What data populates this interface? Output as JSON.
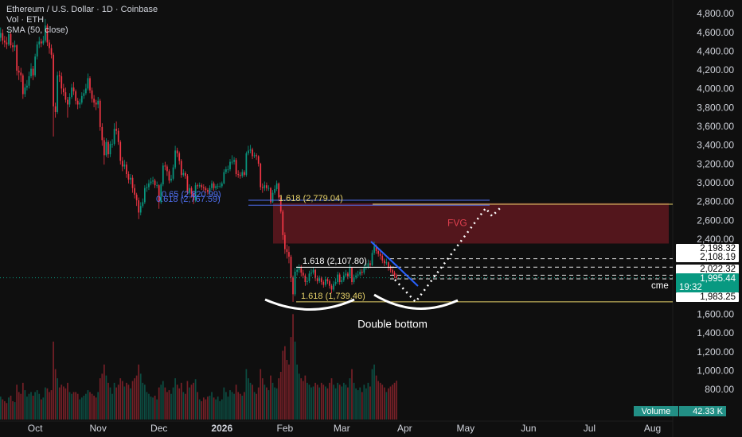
{
  "chart_data": {
    "type": "candlestick",
    "title": "Ethereum / U.S. Dollar · 1D · Coinbase",
    "indicators": [
      "Vol · ETH",
      "SMA (50, close)"
    ],
    "up_color": "#089981",
    "down_color": "#f23645",
    "grid": false,
    "xlim": [
      -0.3,
      331
    ],
    "xticks": [
      {
        "value": 17,
        "label": "Oct"
      },
      {
        "value": 48,
        "label": "Nov"
      },
      {
        "value": 78,
        "label": "Dec"
      },
      {
        "value": 109,
        "label": "2026"
      },
      {
        "value": 140,
        "label": "Feb"
      },
      {
        "value": 168,
        "label": "Mar"
      },
      {
        "value": 199,
        "label": "Apr"
      },
      {
        "value": 229,
        "label": "May"
      },
      {
        "value": 260,
        "label": "Jun"
      },
      {
        "value": 290,
        "label": "Jul"
      },
      {
        "value": 321,
        "label": "Aug"
      }
    ],
    "ylim": [
      470,
      4952
    ],
    "yticks": [
      {
        "value": 800,
        "label": "800.00"
      },
      {
        "value": 1000,
        "label": "1,000.00"
      },
      {
        "value": 1200,
        "label": "1,200.00"
      },
      {
        "value": 1400,
        "label": "1,400.00"
      },
      {
        "value": 1600,
        "label": "1,600.00"
      },
      {
        "value": 1800,
        "label": "1,800.00"
      },
      {
        "value": 2000,
        "label": "2,000.00"
      },
      {
        "value": 2200,
        "label": "2,200.00"
      },
      {
        "value": 2400,
        "label": "2,400.00"
      },
      {
        "value": 2600,
        "label": "2,600.00"
      },
      {
        "value": 2800,
        "label": "2,800.00"
      },
      {
        "value": 3000,
        "label": "3,000.00"
      },
      {
        "value": 3200,
        "label": "3,200.00"
      },
      {
        "value": 3400,
        "label": "3,400.00"
      },
      {
        "value": 3600,
        "label": "3,600.00"
      },
      {
        "value": 3800,
        "label": "3,800.00"
      },
      {
        "value": 4000,
        "label": "4,000.00"
      },
      {
        "value": 4200,
        "label": "4,200.00"
      },
      {
        "value": 4400,
        "label": "4,400.00"
      },
      {
        "value": 4600,
        "label": "4,600.00"
      },
      {
        "value": 4800,
        "label": "4,800.00"
      }
    ],
    "candles": [
      [
        4550,
        4660,
        4510,
        4600
      ],
      [
        4600,
        4640,
        4480,
        4520
      ],
      [
        4520,
        4570,
        4450,
        4500
      ],
      [
        4500,
        4560,
        4430,
        4480
      ],
      [
        4480,
        4640,
        4460,
        4590
      ],
      [
        4590,
        4610,
        4440,
        4470
      ],
      [
        4470,
        4500,
        4400,
        4450
      ],
      [
        4450,
        4520,
        4410,
        4470
      ],
      [
        4470,
        4480,
        4150,
        4200
      ],
      [
        4200,
        4250,
        4100,
        4180
      ],
      [
        4180,
        4230,
        4080,
        4150
      ],
      [
        4150,
        4170,
        3900,
        3950
      ],
      [
        3950,
        4060,
        3920,
        4020
      ],
      [
        4020,
        4100,
        3990,
        4040
      ],
      [
        4040,
        4190,
        4010,
        4140
      ],
      [
        4140,
        4280,
        4120,
        4220
      ],
      [
        4220,
        4250,
        4100,
        4150
      ],
      [
        4150,
        4380,
        4130,
        4350
      ],
      [
        4350,
        4510,
        4320,
        4480
      ],
      [
        4480,
        4560,
        4440,
        4510
      ],
      [
        4510,
        4540,
        4450,
        4490
      ],
      [
        4490,
        4570,
        4470,
        4520
      ],
      [
        4520,
        4750,
        4500,
        4680
      ],
      [
        4680,
        4700,
        4460,
        4500
      ],
      [
        4500,
        4530,
        4380,
        4440
      ],
      [
        4440,
        4480,
        4330,
        4370
      ],
      [
        4370,
        4390,
        3500,
        3820
      ],
      [
        3820,
        3860,
        3700,
        3760
      ],
      [
        3760,
        4190,
        3740,
        4150
      ],
      [
        4150,
        4200,
        4080,
        4140
      ],
      [
        4140,
        4180,
        3950,
        4010
      ],
      [
        4010,
        4060,
        3930,
        3970
      ],
      [
        3970,
        4020,
        3860,
        3890
      ],
      [
        3890,
        3920,
        3700,
        3840
      ],
      [
        3840,
        3960,
        3810,
        3920
      ],
      [
        3920,
        4060,
        3900,
        4020
      ],
      [
        4020,
        4080,
        3940,
        3980
      ],
      [
        3980,
        4000,
        3840,
        3880
      ],
      [
        3880,
        3910,
        3790,
        3840
      ],
      [
        3840,
        3900,
        3800,
        3860
      ],
      [
        3860,
        3970,
        3840,
        3930
      ],
      [
        3930,
        4000,
        3900,
        3960
      ],
      [
        3960,
        4060,
        3940,
        4010
      ],
      [
        4010,
        4170,
        3990,
        4120
      ],
      [
        4120,
        4140,
        3960,
        3990
      ],
      [
        3990,
        4020,
        3860,
        3900
      ],
      [
        3900,
        3940,
        3810,
        3860
      ],
      [
        3860,
        3890,
        3780,
        3840
      ],
      [
        3840,
        3920,
        3800,
        3880
      ],
      [
        3880,
        3900,
        3560,
        3600
      ],
      [
        3600,
        3640,
        3400,
        3460
      ],
      [
        3460,
        3490,
        3200,
        3300
      ],
      [
        3300,
        3480,
        3280,
        3440
      ],
      [
        3440,
        3460,
        3270,
        3310
      ],
      [
        3310,
        3450,
        3280,
        3420
      ],
      [
        3420,
        3470,
        3380,
        3420
      ],
      [
        3420,
        3640,
        3400,
        3580
      ],
      [
        3580,
        3660,
        3520,
        3560
      ],
      [
        3560,
        3590,
        3410,
        3440
      ],
      [
        3440,
        3460,
        3200,
        3240
      ],
      [
        3240,
        3280,
        3130,
        3180
      ],
      [
        3180,
        3250,
        3150,
        3200
      ],
      [
        3200,
        3230,
        3060,
        3100
      ],
      [
        3100,
        3130,
        3000,
        3040
      ],
      [
        3040,
        3100,
        2990,
        3060
      ],
      [
        3060,
        3090,
        2900,
        2950
      ],
      [
        2950,
        2990,
        2840,
        2880
      ],
      [
        2880,
        2900,
        2760,
        2820
      ],
      [
        2820,
        2850,
        2620,
        2690
      ],
      [
        2690,
        2800,
        2660,
        2760
      ],
      [
        2760,
        2840,
        2740,
        2800
      ],
      [
        2800,
        2980,
        2780,
        2950
      ],
      [
        2950,
        3000,
        2910,
        2960
      ],
      [
        2960,
        3040,
        2930,
        3000
      ],
      [
        3000,
        3060,
        2980,
        3020
      ],
      [
        3020,
        3070,
        2990,
        3030
      ],
      [
        3030,
        3050,
        2950,
        2980
      ],
      [
        2980,
        3020,
        2950,
        2980
      ],
      [
        2980,
        2990,
        2730,
        2800
      ],
      [
        2800,
        3010,
        2780,
        2990
      ],
      [
        2990,
        3220,
        2970,
        3190
      ],
      [
        3190,
        3230,
        3140,
        3180
      ],
      [
        3180,
        3200,
        3080,
        3130
      ],
      [
        3130,
        3150,
        3000,
        3030
      ],
      [
        3030,
        3090,
        3010,
        3050
      ],
      [
        3050,
        3200,
        3030,
        3170
      ],
      [
        3170,
        3400,
        3150,
        3350
      ],
      [
        3350,
        3380,
        3280,
        3320
      ],
      [
        3320,
        3340,
        3200,
        3240
      ],
      [
        3240,
        3260,
        3060,
        3090
      ],
      [
        3090,
        3150,
        3070,
        3110
      ],
      [
        3110,
        3130,
        3050,
        3080
      ],
      [
        3080,
        3100,
        2880,
        2900
      ],
      [
        2900,
        2990,
        2880,
        2950
      ],
      [
        2950,
        2970,
        2850,
        2890
      ],
      [
        2890,
        2920,
        2780,
        2820
      ],
      [
        2820,
        3010,
        2800,
        2980
      ],
      [
        2980,
        3000,
        2940,
        2970
      ],
      [
        2970,
        3010,
        2950,
        2980
      ],
      [
        2980,
        3000,
        2930,
        2960
      ],
      [
        2960,
        2990,
        2920,
        2950
      ],
      [
        2950,
        2970,
        2900,
        2930
      ],
      [
        2930,
        2950,
        2880,
        2910
      ],
      [
        2910,
        2980,
        2890,
        2950
      ],
      [
        2950,
        3030,
        2930,
        3000
      ],
      [
        3000,
        3020,
        2920,
        2950
      ],
      [
        2950,
        2990,
        2930,
        2970
      ],
      [
        2970,
        3000,
        2940,
        2970
      ],
      [
        2970,
        3010,
        2950,
        2970
      ],
      [
        2970,
        3020,
        2950,
        3000
      ],
      [
        3000,
        3150,
        2990,
        3120
      ],
      [
        3120,
        3180,
        3100,
        3150
      ],
      [
        3150,
        3190,
        3110,
        3150
      ],
      [
        3150,
        3260,
        3130,
        3230
      ],
      [
        3230,
        3300,
        3200,
        3230
      ],
      [
        3230,
        3280,
        3200,
        3250
      ],
      [
        3250,
        3270,
        3070,
        3100
      ],
      [
        3100,
        3140,
        3060,
        3090
      ],
      [
        3090,
        3120,
        3050,
        3080
      ],
      [
        3080,
        3150,
        3060,
        3120
      ],
      [
        3120,
        3140,
        3070,
        3090
      ],
      [
        3090,
        3340,
        3070,
        3320
      ],
      [
        3320,
        3400,
        3300,
        3350
      ],
      [
        3350,
        3410,
        3320,
        3360
      ],
      [
        3360,
        3380,
        3260,
        3290
      ],
      [
        3290,
        3330,
        3270,
        3300
      ],
      [
        3300,
        3320,
        3250,
        3290
      ],
      [
        3290,
        3300,
        3180,
        3210
      ],
      [
        3210,
        3220,
        2930,
        2960
      ],
      [
        2960,
        3000,
        2900,
        2950
      ],
      [
        2950,
        3020,
        2920,
        2980
      ],
      [
        2980,
        3010,
        2920,
        2950
      ],
      [
        2950,
        2980,
        2920,
        2950
      ],
      [
        2950,
        2960,
        2780,
        2800
      ],
      [
        2800,
        2930,
        2790,
        2900
      ],
      [
        2900,
        2980,
        2880,
        2940
      ],
      [
        2940,
        3030,
        2920,
        3000
      ],
      [
        3000,
        3010,
        2810,
        2850
      ],
      [
        2850,
        2870,
        2680,
        2700
      ],
      [
        2700,
        2720,
        2400,
        2450
      ],
      [
        2450,
        2480,
        2250,
        2300
      ],
      [
        2300,
        2350,
        2200,
        2270
      ],
      [
        2270,
        2330,
        2150,
        2220
      ],
      [
        2220,
        2240,
        1950,
        2000
      ],
      [
        2000,
        2020,
        1740,
        1820
      ],
      [
        1820,
        2100,
        1800,
        2060
      ],
      [
        2060,
        2120,
        2020,
        2080
      ],
      [
        2080,
        2140,
        2050,
        2100
      ],
      [
        2100,
        2130,
        2010,
        2050
      ],
      [
        2050,
        2080,
        1990,
        2020
      ],
      [
        2020,
        2040,
        1910,
        1950
      ],
      [
        1950,
        2000,
        1920,
        1960
      ],
      [
        1960,
        2070,
        1940,
        2040
      ],
      [
        2040,
        2090,
        2010,
        2050
      ],
      [
        2050,
        2110,
        2030,
        2080
      ],
      [
        2080,
        2090,
        1960,
        1990
      ],
      [
        1990,
        2020,
        1930,
        1960
      ],
      [
        1960,
        2020,
        1940,
        1990
      ],
      [
        1990,
        2010,
        1920,
        1950
      ],
      [
        1950,
        1970,
        1890,
        1920
      ],
      [
        1920,
        2010,
        1900,
        1980
      ],
      [
        1980,
        2000,
        1930,
        1960
      ],
      [
        1960,
        1980,
        1880,
        1910
      ],
      [
        1910,
        1930,
        1830,
        1870
      ],
      [
        1870,
        1960,
        1850,
        1930
      ],
      [
        1930,
        1990,
        1910,
        1950
      ],
      [
        1950,
        2060,
        1930,
        2030
      ],
      [
        2030,
        2050,
        1920,
        1950
      ],
      [
        1950,
        2000,
        1930,
        1970
      ],
      [
        1970,
        2060,
        1950,
        2020
      ],
      [
        2020,
        2080,
        2000,
        2040
      ],
      [
        2040,
        2060,
        1980,
        2010
      ],
      [
        2010,
        2140,
        1990,
        2100
      ],
      [
        2100,
        2110,
        1920,
        1950
      ],
      [
        1950,
        2030,
        1930,
        2000
      ],
      [
        2000,
        2050,
        1980,
        2020
      ],
      [
        2020,
        2070,
        2000,
        2030
      ],
      [
        2030,
        2090,
        2010,
        2060
      ],
      [
        2060,
        2090,
        2020,
        2050
      ],
      [
        2050,
        2130,
        2030,
        2100
      ],
      [
        2100,
        2150,
        2080,
        2110
      ],
      [
        2110,
        2190,
        2090,
        2150
      ],
      [
        2150,
        2180,
        2100,
        2130
      ],
      [
        2130,
        2290,
        2120,
        2260
      ],
      [
        2260,
        2380,
        2240,
        2330
      ],
      [
        2330,
        2350,
        2250,
        2280
      ],
      [
        2280,
        2300,
        2220,
        2250
      ],
      [
        2250,
        2280,
        2190,
        2230
      ],
      [
        2230,
        2250,
        2150,
        2180
      ],
      [
        2180,
        2200,
        2120,
        2150
      ],
      [
        2150,
        2200,
        2130,
        2160
      ],
      [
        2160,
        2170,
        2070,
        2100
      ],
      [
        2100,
        2130,
        2050,
        2080
      ],
      [
        2080,
        2100,
        2020,
        2050
      ],
      [
        2050,
        2070,
        1990,
        2020
      ],
      [
        2020,
        2040,
        1980,
        1995.44
      ]
    ],
    "volume_lim": [
      0,
      130
    ],
    "volume": [
      25,
      22,
      20,
      18,
      24,
      26,
      20,
      19,
      38,
      30,
      28,
      40,
      32,
      25,
      28,
      30,
      26,
      30,
      32,
      28,
      22,
      24,
      35,
      34,
      30,
      32,
      85,
      55,
      45,
      35,
      38,
      36,
      34,
      40,
      30,
      28,
      30,
      30,
      28,
      22,
      24,
      26,
      28,
      32,
      30,
      28,
      26,
      24,
      30,
      45,
      50,
      60,
      48,
      40,
      35,
      28,
      40,
      35,
      38,
      45,
      42,
      36,
      40,
      38,
      34,
      42,
      45,
      48,
      60,
      50,
      40,
      38,
      30,
      28,
      25,
      24,
      26,
      22,
      35,
      38,
      42,
      35,
      30,
      32,
      28,
      35,
      45,
      38,
      34,
      40,
      30,
      28,
      42,
      35,
      38,
      40,
      44,
      30,
      22,
      20,
      24,
      22,
      25,
      26,
      30,
      24,
      22,
      25,
      20,
      22,
      35,
      30,
      25,
      32,
      30,
      28,
      38,
      30,
      28,
      26,
      30,
      55,
      45,
      40,
      38,
      30,
      28,
      35,
      55,
      45,
      38,
      35,
      32,
      48,
      40,
      35,
      34,
      45,
      52,
      75,
      80,
      65,
      60,
      90,
      115,
      85,
      60,
      50,
      45,
      42,
      48,
      40,
      38,
      35,
      36,
      40,
      38,
      35,
      40,
      38,
      36,
      34,
      40,
      45,
      38,
      34,
      40,
      38,
      36,
      40,
      38,
      35,
      45,
      55,
      40,
      34,
      32,
      35,
      30,
      38,
      34,
      40,
      36,
      55,
      60,
      48,
      42,
      40,
      38,
      35,
      30,
      34,
      36,
      38,
      40,
      42.33
    ],
    "volume_badge": "Volume",
    "volume_last_label": "42.33 K",
    "last_price": {
      "value": 1995.44,
      "label": "1,995.44"
    },
    "countdown": "19:32",
    "price_labels": [
      {
        "value": 2198.32,
        "label": "2,198.32"
      },
      {
        "value": 2108.19,
        "label": "2,108.19"
      },
      {
        "value": 2022.32,
        "label": "2,022.32"
      },
      {
        "value": 1983.25,
        "label": "1,983.25"
      }
    ],
    "source_label": "cme",
    "fvg": {
      "label": "FVG",
      "top": 2790,
      "bottom": 2360
    },
    "annotations": [
      {
        "label": "0.65 (2,820.99)",
        "value": 2820.99,
        "color": "#4f6ff0"
      },
      {
        "label": "0.618 (2,767.59)",
        "value": 2767.59,
        "color": "#4f6ff0"
      },
      {
        "label": "1.618 (2,779.04)",
        "value": 2779.04,
        "color": "#e8d36a"
      },
      {
        "label": "1.618 (2,107.80)",
        "value": 2107.8,
        "color": "#ffffff"
      },
      {
        "label": "1.618 (1,739.46)",
        "value": 1739.46,
        "color": "#e8d36a"
      }
    ],
    "pattern_label": "Double bottom"
  }
}
